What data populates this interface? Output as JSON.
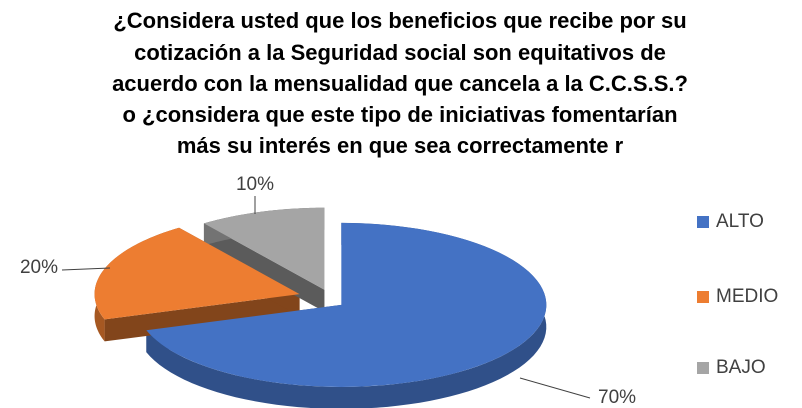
{
  "chart_data": {
    "type": "pie3d",
    "title": [
      "¿Considera usted que los beneficios que recibe por su",
      "cotización a la Seguridad social son equitativos de",
      "acuerdo con la mensualidad que cancela a la C.C.S.S.?",
      "o ¿considera que este tipo de iniciativas fomentarían",
      "más su interés en que sea correctamente r"
    ],
    "categories": [
      "ALTO",
      "MEDIO",
      "BAJO"
    ],
    "values": [
      70,
      20,
      10
    ],
    "value_labels": [
      "70%",
      "20%",
      "10%"
    ],
    "colors": [
      "#4472c4",
      "#ed7d31",
      "#a5a5a5"
    ],
    "legend": "right"
  }
}
